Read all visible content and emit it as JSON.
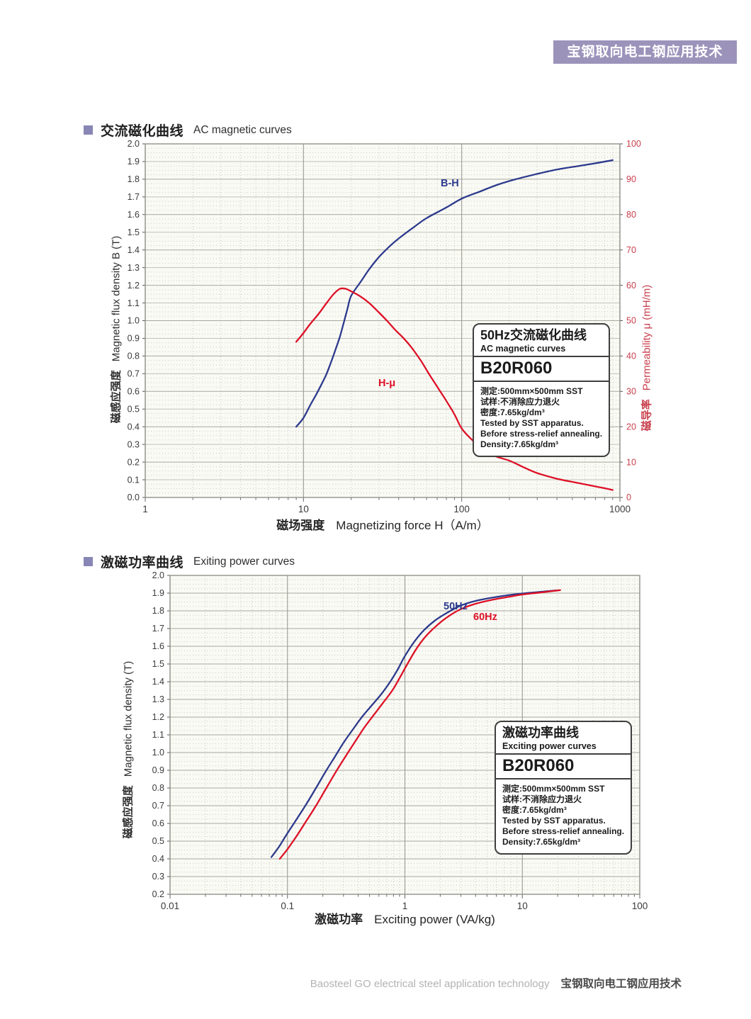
{
  "header": {
    "banner": "宝钢取向电工钢应用技术"
  },
  "sections": [
    {
      "title_cn": "交流磁化曲线",
      "title_en": "AC magnetic curves"
    },
    {
      "title_cn": "激磁功率曲线",
      "title_en": "Exiting power curves"
    }
  ],
  "footer": {
    "en": "Baosteel GO electrical steel application technology",
    "cn": "宝钢取向电工钢应用技术"
  },
  "colors": {
    "banner_purple": "#9c93bb",
    "bullet_purple": "#8886b5",
    "curve_blue": "#2c3a8c",
    "curve_red": "#dd1126",
    "right_axis_red": "#c9404e"
  },
  "chart_data": [
    {
      "type": "line",
      "title_cn": "交流磁化曲线",
      "title_en": "AC magnetic curves",
      "xscale": "log",
      "xlim": [
        1,
        1000
      ],
      "xticks": [
        1,
        10,
        100,
        1000
      ],
      "xlabel_cn": "磁场强度",
      "xlabel_en": "Magnetizing force H（A/m）",
      "y_left": {
        "label_cn": "磁感应强度",
        "label_en": "Magnetic flux density B (T)",
        "lim": [
          0,
          2.0
        ],
        "tick_step": 0.1,
        "major_step": 0.2,
        "decimals": 1
      },
      "y_right": {
        "label_cn": "磁导率",
        "label_en": "Permeability μ (mH/m)",
        "lim": [
          0,
          100
        ],
        "tick_step": 10,
        "decimals": 0
      },
      "grid": true,
      "series": [
        {
          "name": "B-H",
          "axis": "left",
          "color": "#2c3a8c",
          "points": [
            [
              9,
              0.4
            ],
            [
              10,
              0.45
            ],
            [
              11,
              0.52
            ],
            [
              12,
              0.58
            ],
            [
              13,
              0.64
            ],
            [
              14,
              0.7
            ],
            [
              15,
              0.77
            ],
            [
              16,
              0.84
            ],
            [
              17,
              0.91
            ],
            [
              18,
              0.99
            ],
            [
              19,
              1.07
            ],
            [
              20,
              1.14
            ],
            [
              23,
              1.22
            ],
            [
              26,
              1.29
            ],
            [
              30,
              1.36
            ],
            [
              35,
              1.42
            ],
            [
              40,
              1.465
            ],
            [
              50,
              1.53
            ],
            [
              60,
              1.58
            ],
            [
              80,
              1.64
            ],
            [
              100,
              1.69
            ],
            [
              130,
              1.73
            ],
            [
              170,
              1.77
            ],
            [
              220,
              1.8
            ],
            [
              300,
              1.83
            ],
            [
              400,
              1.855
            ],
            [
              550,
              1.875
            ],
            [
              700,
              1.89
            ],
            [
              900,
              1.908
            ]
          ]
        },
        {
          "name": "H-μ",
          "axis": "right",
          "color": "#dd1126",
          "points": [
            [
              9,
              44
            ],
            [
              10,
              46.5
            ],
            [
              11,
              49
            ],
            [
              12.5,
              52
            ],
            [
              14,
              55
            ],
            [
              15.5,
              57.5
            ],
            [
              17,
              59
            ],
            [
              18.5,
              59
            ],
            [
              20,
              58.3
            ],
            [
              23,
              56.8
            ],
            [
              26,
              55
            ],
            [
              30,
              52.3
            ],
            [
              34,
              49.8
            ],
            [
              38,
              47.4
            ],
            [
              43,
              45
            ],
            [
              48,
              42.5
            ],
            [
              55,
              38.8
            ],
            [
              62,
              35
            ],
            [
              70,
              31.3
            ],
            [
              80,
              27.3
            ],
            [
              90,
              23.5
            ],
            [
              100,
              19.5
            ],
            [
              115,
              16.5
            ],
            [
              135,
              13.8
            ],
            [
              160,
              11.8
            ],
            [
              200,
              10.4
            ],
            [
              250,
              8.4
            ],
            [
              300,
              6.9
            ],
            [
              400,
              5.3
            ],
            [
              500,
              4.4
            ],
            [
              650,
              3.4
            ],
            [
              800,
              2.6
            ],
            [
              900,
              2.1
            ]
          ]
        }
      ],
      "info_box": {
        "title_cn": "50Hz交流磁化曲线",
        "title_en": "AC magnetic curves",
        "grade": "B20R060",
        "lines": [
          "测定:500mm×500mm SST",
          "试样:不消除应力退火",
          "密度:7.65kg/dm³",
          "Tested by SST apparatus.",
          "Before stress-relief annealing.",
          "Density:7.65kg/dm³"
        ]
      }
    },
    {
      "type": "line",
      "title_cn": "激磁功率曲线",
      "title_en": "Exiting power curves",
      "xscale": "log",
      "xlim": [
        0.01,
        100
      ],
      "xticks": [
        0.01,
        0.1,
        1,
        10,
        100
      ],
      "xlabel_cn": "激磁功率",
      "xlabel_en": "Exciting power (VA/kg)",
      "y_left": {
        "label_cn": "磁感应强度",
        "label_en": "Magnetic flux density (T)",
        "lim": [
          0.2,
          2.0
        ],
        "tick_step": 0.1,
        "major_step": 0.1,
        "decimals": 1
      },
      "grid": true,
      "series": [
        {
          "name": "50Hz",
          "axis": "left",
          "color": "#2c3a8c",
          "points": [
            [
              0.073,
              0.41
            ],
            [
              0.085,
              0.47
            ],
            [
              0.1,
              0.545
            ],
            [
              0.12,
              0.625
            ],
            [
              0.145,
              0.71
            ],
            [
              0.175,
              0.8
            ],
            [
              0.21,
              0.89
            ],
            [
              0.25,
              0.97
            ],
            [
              0.3,
              1.055
            ],
            [
              0.36,
              1.13
            ],
            [
              0.43,
              1.2
            ],
            [
              0.52,
              1.265
            ],
            [
              0.63,
              1.33
            ],
            [
              0.75,
              1.4
            ],
            [
              0.87,
              1.47
            ],
            [
              1.0,
              1.545
            ],
            [
              1.2,
              1.625
            ],
            [
              1.45,
              1.69
            ],
            [
              1.8,
              1.745
            ],
            [
              2.3,
              1.79
            ],
            [
              3,
              1.83
            ],
            [
              4,
              1.856
            ],
            [
              5.5,
              1.874
            ],
            [
              7.5,
              1.888
            ],
            [
              10,
              1.898
            ],
            [
              14,
              1.907
            ],
            [
              20,
              1.916
            ]
          ]
        },
        {
          "name": "60Hz",
          "axis": "left",
          "color": "#dd1126",
          "points": [
            [
              0.086,
              0.4
            ],
            [
              0.1,
              0.455
            ],
            [
              0.12,
              0.53
            ],
            [
              0.145,
              0.615
            ],
            [
              0.175,
              0.7
            ],
            [
              0.21,
              0.79
            ],
            [
              0.255,
              0.885
            ],
            [
              0.31,
              0.975
            ],
            [
              0.375,
              1.06
            ],
            [
              0.45,
              1.14
            ],
            [
              0.54,
              1.21
            ],
            [
              0.65,
              1.28
            ],
            [
              0.78,
              1.35
            ],
            [
              0.9,
              1.42
            ],
            [
              1.05,
              1.5
            ],
            [
              1.25,
              1.585
            ],
            [
              1.5,
              1.655
            ],
            [
              1.85,
              1.715
            ],
            [
              2.3,
              1.765
            ],
            [
              3,
              1.81
            ],
            [
              4,
              1.84
            ],
            [
              5.5,
              1.862
            ],
            [
              7.5,
              1.878
            ],
            [
              10,
              1.892
            ],
            [
              14,
              1.903
            ],
            [
              21,
              1.917
            ]
          ]
        }
      ],
      "info_box": {
        "title_cn": "激磁功率曲线",
        "title_en": "Exciting power curves",
        "grade": "B20R060",
        "lines": [
          "测定:500mm×500mm SST",
          "试样:不消除应力退火",
          "密度:7.65kg/dm³",
          "Tested by SST apparatus.",
          "Before stress-relief annealing.",
          "Density:7.65kg/dm³"
        ]
      }
    }
  ]
}
